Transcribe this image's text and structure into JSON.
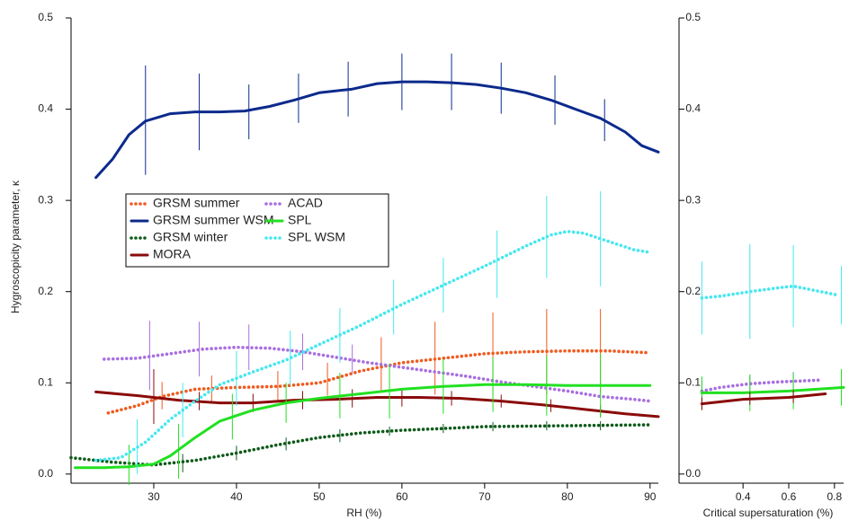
{
  "chart_data": [
    {
      "type": "line",
      "x_label": "RH (%)",
      "y_label": "Hygroscopicity parameter, κ",
      "xlim": [
        20,
        91
      ],
      "ylim": [
        -0.01,
        0.5
      ],
      "xticks": [
        30,
        40,
        50,
        60,
        70,
        80,
        90
      ],
      "yticks": [
        {
          "value": 0,
          "label": "0.0"
        },
        0.1,
        0.2,
        0.3,
        0.4,
        0.5
      ],
      "legend": "upper left",
      "series": [
        {
          "name": "GRSM summer",
          "color": "#f05a1e",
          "style": "dotted",
          "x": [
            24.5,
            28,
            31,
            35,
            40,
            45,
            50,
            55,
            60,
            65,
            70,
            75,
            80,
            85,
            90
          ],
          "values": [
            0.067,
            0.075,
            0.085,
            0.093,
            0.095,
            0.096,
            0.1,
            0.113,
            0.122,
            0.127,
            0.132,
            0.134,
            0.135,
            0.135,
            0.133
          ],
          "error_bars": {
            "x": [
              31,
              37,
              45,
              51,
              57.5,
              64,
              71,
              77.5,
              84
            ],
            "values": [
              0.086,
              0.093,
              0.096,
              0.104,
              0.12,
              0.127,
              0.132,
              0.134,
              0.135
            ],
            "errors": [
              0.015,
              0.015,
              0.017,
              0.018,
              0.03,
              0.04,
              0.045,
              0.047,
              0.046
            ]
          }
        },
        {
          "name": "GRSM summer WSM",
          "color": "#0c2a8c",
          "style": "solid",
          "x": [
            23,
            25,
            27,
            29,
            32,
            35,
            38,
            41,
            44,
            47,
            50,
            54,
            57,
            60,
            63,
            66,
            69,
            72,
            75,
            78,
            81,
            84,
            87,
            89,
            91
          ],
          "values": [
            0.325,
            0.345,
            0.372,
            0.387,
            0.395,
            0.397,
            0.397,
            0.398,
            0.403,
            0.41,
            0.418,
            0.422,
            0.428,
            0.43,
            0.43,
            0.429,
            0.427,
            0.423,
            0.418,
            0.41,
            0.4,
            0.39,
            0.375,
            0.36,
            0.353
          ],
          "error_bars": {
            "x": [
              29,
              35.5,
              41.5,
              47.5,
              53.5,
              60,
              66,
              72,
              78.5,
              84.5
            ],
            "values": [
              0.388,
              0.397,
              0.397,
              0.412,
              0.422,
              0.43,
              0.43,
              0.423,
              0.41,
              0.388
            ],
            "errors": [
              0.06,
              0.042,
              0.03,
              0.027,
              0.03,
              0.031,
              0.031,
              0.028,
              0.027,
              0.023
            ]
          }
        },
        {
          "name": "GRSM winter",
          "color": "#0e5a1a",
          "style": "dotted",
          "x": [
            20,
            25,
            30,
            35,
            40,
            45,
            50,
            55,
            60,
            65,
            70,
            80,
            90
          ],
          "values": [
            0.018,
            0.013,
            0.01,
            0.015,
            0.023,
            0.032,
            0.04,
            0.045,
            0.048,
            0.05,
            0.052,
            0.053,
            0.054
          ],
          "error_bars": {
            "x": [
              33.5,
              40,
              46,
              52.5,
              58.5,
              65,
              71,
              77.5,
              84
            ],
            "values": [
              0.012,
              0.023,
              0.033,
              0.042,
              0.047,
              0.05,
              0.052,
              0.053,
              0.053
            ],
            "errors": [
              0.01,
              0.008,
              0.007,
              0.007,
              0.005,
              0.005,
              0.005,
              0.005,
              0.005
            ]
          }
        },
        {
          "name": "MORA",
          "color": "#8b0a0a",
          "style": "solid",
          "x": [
            23,
            28,
            33,
            38,
            42,
            47,
            52,
            57,
            62,
            67,
            72,
            77,
            82,
            87,
            91
          ],
          "values": [
            0.09,
            0.086,
            0.081,
            0.078,
            0.078,
            0.081,
            0.082,
            0.084,
            0.084,
            0.083,
            0.08,
            0.076,
            0.071,
            0.066,
            0.063
          ],
          "error_bars": {
            "x": [
              30,
              35.5,
              42,
              48,
              54,
              60,
              66,
              72,
              78,
              84
            ],
            "values": [
              0.085,
              0.08,
              0.078,
              0.081,
              0.083,
              0.084,
              0.083,
              0.08,
              0.075,
              0.069
            ],
            "errors": [
              0.03,
              0.01,
              0.01,
              0.01,
              0.01,
              0.01,
              0.008,
              0.007,
              0.007,
              0.007
            ]
          }
        },
        {
          "name": "ACAD",
          "color": "#a86ee0",
          "style": "dotted",
          "x": [
            24,
            28,
            32,
            36,
            40,
            44,
            48,
            52,
            56,
            60,
            64,
            68,
            72,
            76,
            80,
            84,
            88,
            90
          ],
          "values": [
            0.126,
            0.127,
            0.132,
            0.137,
            0.139,
            0.138,
            0.134,
            0.128,
            0.122,
            0.117,
            0.112,
            0.107,
            0.101,
            0.096,
            0.091,
            0.085,
            0.082,
            0.08
          ],
          "error_bars": {
            "x": [
              29.5,
              35.5,
              41.5,
              48,
              54
            ],
            "values": [
              0.13,
              0.137,
              0.139,
              0.134,
              0.126
            ],
            "errors": [
              0.038,
              0.03,
              0.025,
              0.02,
              0.016
            ]
          }
        },
        {
          "name": "SPL",
          "color": "#22e022",
          "style": "solid",
          "x": [
            20.5,
            24,
            27,
            30,
            32,
            35,
            38,
            42,
            46,
            50,
            55,
            60,
            65,
            70,
            75,
            80,
            85,
            90
          ],
          "values": [
            0.007,
            0.007,
            0.008,
            0.011,
            0.02,
            0.04,
            0.058,
            0.07,
            0.078,
            0.083,
            0.088,
            0.093,
            0.096,
            0.098,
            0.098,
            0.097,
            0.097,
            0.097
          ],
          "error_bars": {
            "x": [
              27,
              33,
              39.5,
              46,
              52.5,
              58.5,
              65,
              71,
              77.5,
              84
            ],
            "values": [
              0.01,
              0.025,
              0.063,
              0.078,
              0.086,
              0.091,
              0.096,
              0.098,
              0.097,
              0.097
            ],
            "errors": [
              0.022,
              0.03,
              0.025,
              0.022,
              0.025,
              0.03,
              0.03,
              0.03,
              0.033,
              0.035
            ]
          }
        },
        {
          "name": "SPL WSM",
          "color": "#44e8f0",
          "style": "dotted",
          "x": [
            23,
            26,
            29,
            32,
            35,
            38,
            42,
            46,
            50,
            55,
            60,
            65,
            70,
            75,
            78,
            80,
            82,
            85,
            88,
            90
          ],
          "values": [
            0.015,
            0.018,
            0.035,
            0.06,
            0.08,
            0.098,
            0.112,
            0.125,
            0.142,
            0.163,
            0.186,
            0.207,
            0.228,
            0.25,
            0.262,
            0.266,
            0.264,
            0.255,
            0.246,
            0.243
          ],
          "error_bars": {
            "x": [
              28,
              33.5,
              40,
              46.5,
              52.5,
              59,
              65,
              71.5,
              77.5,
              84
            ],
            "values": [
              0.03,
              0.07,
              0.105,
              0.127,
              0.152,
              0.183,
              0.207,
              0.23,
              0.26,
              0.258
            ],
            "errors": [
              0.03,
              0.03,
              0.03,
              0.03,
              0.03,
              0.03,
              0.03,
              0.037,
              0.045,
              0.052
            ]
          }
        }
      ]
    },
    {
      "type": "line",
      "x_label": "Critical supersaturation (%)",
      "xlim": [
        0.12,
        0.84
      ],
      "ylim": [
        -0.01,
        0.5
      ],
      "xticks": [
        0.4,
        0.6,
        0.8
      ],
      "yticks": [
        {
          "value": 0,
          "label": "0.0"
        },
        0.1,
        0.2,
        0.3,
        0.4,
        0.5
      ],
      "series": [
        {
          "color": "#44e8f0",
          "style": "dotted",
          "x": [
            0.22,
            0.3,
            0.43,
            0.55,
            0.62,
            0.7,
            0.82
          ],
          "values": [
            0.193,
            0.195,
            0.2,
            0.204,
            0.206,
            0.202,
            0.196
          ],
          "error_bars": {
            "x": [
              0.22,
              0.43,
              0.62,
              0.83
            ],
            "values": [
              0.193,
              0.2,
              0.206,
              0.196
            ],
            "errors": [
              0.04,
              0.052,
              0.045,
              0.032
            ]
          }
        },
        {
          "color": "#a86ee0",
          "style": "dotted",
          "x": [
            0.22,
            0.3,
            0.43,
            0.55,
            0.74
          ],
          "values": [
            0.091,
            0.095,
            0.099,
            0.101,
            0.103
          ],
          "error_bars": {
            "x": [
              0.22,
              0.43,
              0.62
            ],
            "values": [
              0.091,
              0.099,
              0.102
            ],
            "errors": [
              0.012,
              0.01,
              0.01
            ]
          }
        },
        {
          "color": "#22e022",
          "style": "solid",
          "x": [
            0.22,
            0.4,
            0.6,
            0.84
          ],
          "values": [
            0.089,
            0.089,
            0.091,
            0.095
          ],
          "error_bars": {
            "x": [
              0.22,
              0.43,
              0.62,
              0.83
            ],
            "values": [
              0.089,
              0.089,
              0.091,
              0.095
            ],
            "errors": [
              0.018,
              0.02,
              0.02,
              0.02
            ]
          }
        },
        {
          "color": "#8b0a0a",
          "style": "solid",
          "x": [
            0.22,
            0.4,
            0.6,
            0.76
          ],
          "values": [
            0.077,
            0.082,
            0.084,
            0.088
          ],
          "error_bars": {
            "x": [
              0.22,
              0.43,
              0.62
            ],
            "values": [
              0.077,
              0.083,
              0.085
            ],
            "errors": [
              0.007,
              0.007,
              0.007
            ]
          }
        }
      ]
    }
  ]
}
